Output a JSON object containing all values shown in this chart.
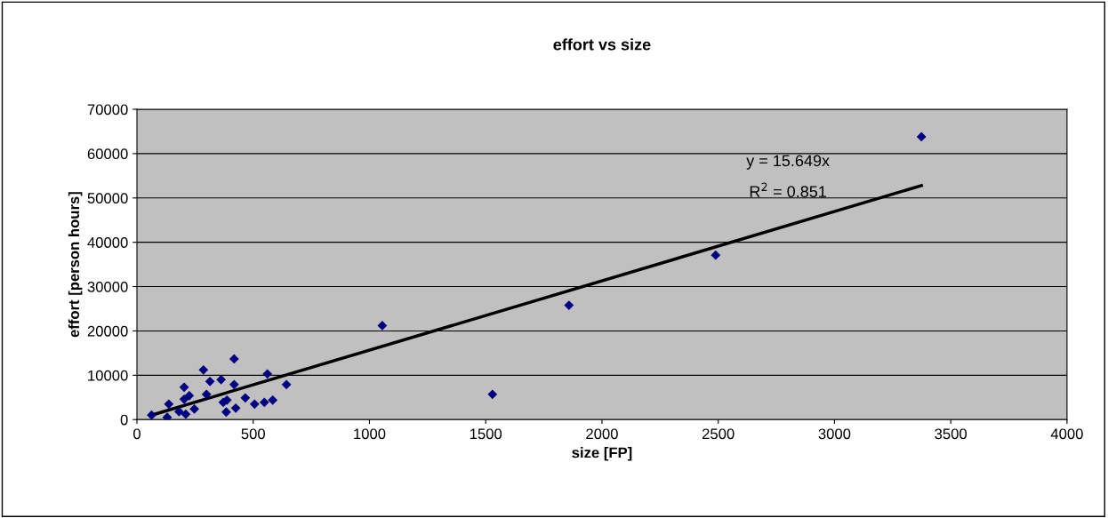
{
  "chart_data": {
    "type": "scatter",
    "title": "effort vs size",
    "xlabel": "size [FP]",
    "ylabel": "effort [person hours]",
    "annotations": [
      "y = 15.649x",
      "R$^{2}$ = 0.851"
    ],
    "series": [
      {
        "color": "#000080",
        "marker": "diamond",
        "x": [
          63,
          130,
          137,
          181,
          203,
          203,
          210,
          225,
          247,
          286,
          299,
          314,
          362,
          371,
          384,
          387,
          418,
          418,
          425,
          466,
          506,
          548,
          561,
          584,
          643,
          1055,
          1529,
          1858,
          2489,
          3374
        ],
        "values": [
          1000,
          500,
          3500,
          1800,
          7300,
          4600,
          1200,
          5400,
          2400,
          11200,
          5700,
          8600,
          9000,
          3900,
          1700,
          4400,
          13700,
          7900,
          2600,
          4900,
          3500,
          3900,
          10300,
          4400,
          7900,
          21200,
          5700,
          25800,
          37100,
          63800
        ]
      },
      {
        "type": "line",
        "color": "#000000",
        "marker": "none",
        "line_style": "solid",
        "x": [
          63,
          3374
        ],
        "values": [
          1000,
          52800
        ]
      }
    ],
    "xlim": [
      0,
      4000
    ],
    "xticks": [
      0,
      500,
      1000,
      1500,
      2000,
      2500,
      3000,
      3500,
      4000
    ],
    "ylim": [
      0,
      70000
    ],
    "yticks": [
      0,
      10000,
      20000,
      30000,
      40000,
      50000,
      60000,
      70000
    ],
    "grid": "y",
    "legend": false
  }
}
